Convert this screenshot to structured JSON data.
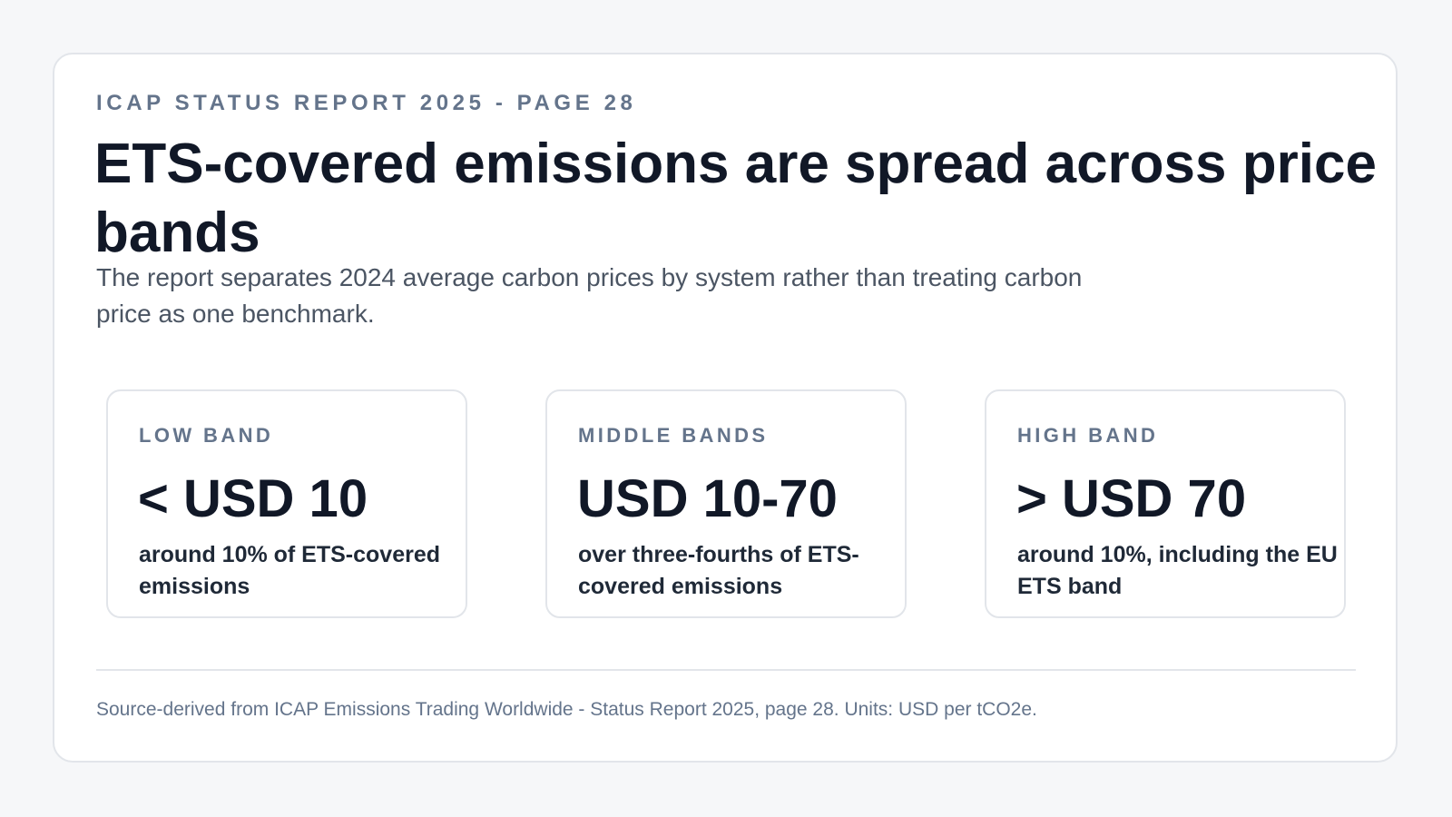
{
  "header": {
    "eyebrow": "ICAP STATUS REPORT 2025 - PAGE 28",
    "title": "ETS-covered emissions are spread across price bands",
    "subtitle": "The report separates 2024 average carbon prices by system rather than treating carbon price as one benchmark."
  },
  "bands": [
    {
      "label": "LOW BAND",
      "value": "< USD 10",
      "description": "around 10% of ETS-covered emissions"
    },
    {
      "label": "MIDDLE BANDS",
      "value": "USD 10-70",
      "description": "over three-fourths of ETS-covered emissions"
    },
    {
      "label": "HIGH BAND",
      "value": "> USD 70",
      "description": "around 10%, including the EU ETS band"
    }
  ],
  "footer": {
    "source": "Source-derived from ICAP Emissions Trading Worldwide - Status Report 2025, page 28. Units: USD per tCO2e."
  },
  "colors": {
    "background": "#f6f7f9",
    "card": "#ffffff",
    "border": "#e2e5ea",
    "heading": "#111827",
    "muted": "#64748b"
  }
}
